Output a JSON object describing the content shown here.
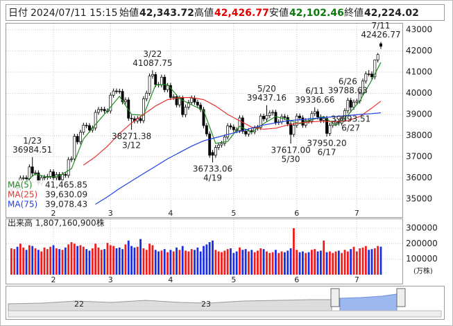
{
  "header": {
    "date_label": "日付",
    "datetime": "2024/07/11 15:15",
    "open_label": "始値",
    "open": "42,343.72",
    "high_label": "高値",
    "high": "42,426.77",
    "low_label": "安値",
    "low": "42,102.46",
    "close_label": "終値",
    "close": "42,224.02"
  },
  "chart_data": {
    "type": "candlestick",
    "grid": true,
    "up_color": "#ffffff",
    "down_color": "#000000",
    "ylim": [
      34570,
      43330
    ],
    "yticks": [
      35000,
      36000,
      37000,
      38000,
      39000,
      40000,
      41000,
      42000,
      43000
    ],
    "xticks": [
      {
        "value": 14,
        "label": "2"
      },
      {
        "value": 33,
        "label": "3"
      },
      {
        "value": 53,
        "label": "4"
      },
      {
        "value": 74,
        "label": "5"
      },
      {
        "value": 95,
        "label": "6"
      },
      {
        "value": 115,
        "label": "7"
      }
    ],
    "candles": [
      [
        35450,
        35700,
        35330,
        35580
      ],
      [
        35580,
        35740,
        35460,
        35620
      ],
      [
        35620,
        35740,
        35360,
        35480
      ],
      [
        35480,
        36110,
        35360,
        35990
      ],
      [
        35990,
        36120,
        35880,
        36000
      ],
      [
        36000,
        36120,
        35840,
        35960
      ],
      [
        35960,
        36640,
        35840,
        36520
      ],
      [
        36520,
        36984.51,
        36100,
        36226
      ],
      [
        36226,
        36356,
        36116,
        36236
      ],
      [
        36236,
        36356,
        35630,
        35750
      ],
      [
        35750,
        36130,
        35630,
        36010
      ],
      [
        36010,
        36146,
        35890,
        36026
      ],
      [
        36026,
        36186,
        35906,
        36066
      ],
      [
        36066,
        36407,
        35946,
        36287
      ],
      [
        36287,
        36407,
        35891,
        36011
      ],
      [
        36011,
        36278,
        35891,
        36158
      ],
      [
        36158,
        36278,
        35790,
        35910
      ],
      [
        35910,
        36280,
        35790,
        36160
      ],
      [
        36160,
        36280,
        35999,
        36119
      ],
      [
        36119,
        36984,
        35999,
        36864
      ],
      [
        36864,
        37017,
        36744,
        36897
      ],
      [
        36897,
        38084,
        36777,
        37964
      ],
      [
        37964,
        38084,
        37583,
        37703
      ],
      [
        37703,
        38277,
        37583,
        38157
      ],
      [
        38157,
        38608,
        38037,
        38488
      ],
      [
        38488,
        38608,
        38350,
        38470
      ],
      [
        38470,
        38590,
        38142,
        38262
      ],
      [
        38262,
        38483,
        38142,
        38363
      ],
      [
        38363,
        39218,
        38243,
        39098
      ],
      [
        39098,
        39353,
        38978,
        39233
      ],
      [
        39233,
        39360,
        39113,
        39240
      ],
      [
        39240,
        39360,
        39046,
        39166
      ],
      [
        39166,
        39286,
        39046,
        39166
      ],
      [
        39166,
        40030,
        39046,
        39910
      ],
      [
        39910,
        40229,
        39790,
        40109
      ],
      [
        40109,
        40229,
        39977,
        40097
      ],
      [
        40097,
        40217,
        39970,
        40090
      ],
      [
        40090,
        40210,
        39478,
        39598
      ],
      [
        39598,
        39808,
        39478,
        39688
      ],
      [
        39688,
        39808,
        38700,
        38820
      ],
      [
        38820,
        39000,
        38271.38,
        38797
      ],
      [
        38797,
        38917,
        38575,
        38695
      ],
      [
        38695,
        38927,
        38575,
        38807
      ],
      [
        38807,
        38927,
        38587,
        38707
      ],
      [
        38707,
        39860,
        38587,
        39740
      ],
      [
        39740,
        40123,
        39620,
        40003
      ],
      [
        40003,
        40935,
        39883,
        40815
      ],
      [
        40815,
        41087.75,
        40695,
        40888
      ],
      [
        40888,
        41008,
        40294,
        40414
      ],
      [
        40414,
        40534,
        40278,
        40398
      ],
      [
        40398,
        40882,
        40278,
        40762
      ],
      [
        40762,
        40882,
        40048,
        40168
      ],
      [
        40168,
        40489,
        40048,
        40369
      ],
      [
        40369,
        40489,
        39683,
        39803
      ],
      [
        39803,
        39958,
        39683,
        39838
      ],
      [
        39838,
        39958,
        39331,
        39451
      ],
      [
        39451,
        39893,
        39331,
        39773
      ],
      [
        39773,
        39893,
        38872,
        38992
      ],
      [
        38992,
        39467,
        38872,
        39347
      ],
      [
        39347,
        39686,
        39227,
        39566
      ],
      [
        39566,
        39893,
        39446,
        39773
      ],
      [
        39773,
        39893,
        39461,
        39581
      ],
      [
        39581,
        39701,
        39322,
        39442
      ],
      [
        39442,
        39562,
        39112,
        39232
      ],
      [
        39232,
        39352,
        38351,
        38471
      ],
      [
        38471,
        38591,
        37959,
        38079
      ],
      [
        38079,
        38199,
        36948,
        37068
      ],
      [
        37200,
        37320,
        36733.06,
        37068
      ],
      [
        37068,
        37558,
        36948,
        37438
      ],
      [
        37438,
        37672,
        37318,
        37552
      ],
      [
        37552,
        37748,
        37432,
        37628
      ],
      [
        37628,
        38054,
        37508,
        37934
      ],
      [
        37934,
        38580,
        37814,
        38460
      ],
      [
        38460,
        38580,
        38285,
        38405
      ],
      [
        38405,
        38525,
        38154,
        38274
      ],
      [
        38274,
        38394,
        38116,
        38236
      ],
      [
        38236,
        38955,
        38116,
        38835
      ],
      [
        38835,
        38955,
        38082,
        38202
      ],
      [
        38202,
        38322,
        37953,
        38073
      ],
      [
        38073,
        38349,
        37953,
        38229
      ],
      [
        38229,
        38349,
        38059,
        38179
      ],
      [
        38179,
        38476,
        38059,
        38356
      ],
      [
        38356,
        38505,
        38236,
        38385
      ],
      [
        38385,
        39040,
        38265,
        38920
      ],
      [
        38920,
        39040,
        38667,
        38787
      ],
      [
        38787,
        39437.16,
        38667,
        38946
      ],
      [
        38946,
        39189,
        38826,
        39069
      ],
      [
        39069,
        39223,
        38949,
        39103
      ],
      [
        39103,
        39223,
        38497,
        38617
      ],
      [
        38617,
        38766,
        38497,
        38646
      ],
      [
        38646,
        39020,
        38526,
        38900
      ],
      [
        38900,
        39020,
        38735,
        38855
      ],
      [
        38855,
        38975,
        38436,
        38556
      ],
      [
        38556,
        38676,
        37617,
        38054
      ],
      [
        38054,
        38607,
        37934,
        38487
      ],
      [
        38487,
        39043,
        38367,
        38923
      ],
      [
        38923,
        39043,
        38717,
        38837
      ],
      [
        38837,
        38957,
        38370,
        38490
      ],
      [
        38490,
        38823,
        38370,
        38703
      ],
      [
        38703,
        38823,
        38563,
        38683
      ],
      [
        38683,
        39158,
        38563,
        39038
      ],
      [
        39038,
        39336.66,
        38918,
        39134
      ],
      [
        39134,
        39254,
        38756,
        38876
      ],
      [
        38876,
        38996,
        38600,
        38720
      ],
      [
        38720,
        38934,
        38600,
        38814
      ],
      [
        38814,
        38934,
        37950.2,
        38102
      ],
      [
        38102,
        38602,
        37982,
        38482
      ],
      [
        38482,
        38690,
        38362,
        38570
      ],
      [
        38570,
        38753,
        38450,
        38633
      ],
      [
        38633,
        38753,
        38476,
        38596
      ],
      [
        38596,
        38924,
        38476,
        38804
      ],
      [
        38804,
        39293,
        38684,
        39173
      ],
      [
        39173,
        39788.63,
        39053,
        39667
      ],
      [
        39667,
        39787,
        39093.51,
        39341
      ],
      [
        39341,
        39703,
        39221,
        39583
      ],
      [
        39583,
        39751,
        39463,
        39631
      ],
      [
        39631,
        40106,
        39511,
        39986
      ],
      [
        39986,
        40700,
        39866,
        40580
      ],
      [
        40580,
        41033,
        40460,
        40913
      ],
      [
        40913,
        41100,
        40792,
        40912
      ],
      [
        40912,
        41032,
        40660,
        40780
      ],
      [
        40780,
        41600,
        40660,
        41580
      ],
      [
        41580,
        41900,
        41460,
        41831
      ],
      [
        42343.72,
        42426.77,
        42102.46,
        42224.02
      ]
    ],
    "series": [
      {
        "name": "MA(5)",
        "color": "#1f8a1f",
        "legend_value": {
          "value": 41465.85,
          "label": "41,465.85"
        },
        "x": [
          4,
          8,
          12,
          16,
          20,
          24,
          28,
          32,
          36,
          40,
          44,
          48,
          52,
          56,
          60,
          64,
          68,
          72,
          76,
          80,
          84,
          88,
          92,
          96,
          100,
          104,
          108,
          112,
          116,
          120,
          123
        ],
        "values": [
          35730,
          36190,
          36020,
          36100,
          36430,
          37840,
          38520,
          39180,
          39860,
          39000,
          38960,
          40390,
          40420,
          39740,
          39460,
          39190,
          37630,
          37720,
          38440,
          38150,
          38570,
          38900,
          38750,
          38560,
          38750,
          38900,
          38470,
          38970,
          39640,
          40630,
          41465.85
        ]
      },
      {
        "name": "MA(25)",
        "color": "#e8322e",
        "legend_value": {
          "value": 39630.09,
          "label": "39,630.09"
        },
        "x": [
          24,
          28,
          32,
          36,
          40,
          44,
          48,
          52,
          56,
          60,
          64,
          68,
          72,
          76,
          80,
          84,
          88,
          92,
          96,
          100,
          104,
          108,
          112,
          116,
          120,
          123
        ],
        "values": [
          36600,
          37000,
          37500,
          38100,
          38600,
          39000,
          39400,
          39700,
          39800,
          39800,
          39700,
          39400,
          39000,
          38700,
          38400,
          38300,
          38350,
          38500,
          38600,
          38650,
          38680,
          38650,
          38700,
          38900,
          39300,
          39630.09
        ]
      },
      {
        "name": "MA(75)",
        "color": "#2040e0",
        "legend_value": {
          "value": 39078.43,
          "label": "39,078.43"
        },
        "x": [
          28,
          32,
          36,
          40,
          44,
          48,
          52,
          56,
          60,
          64,
          68,
          72,
          76,
          80,
          84,
          88,
          92,
          96,
          100,
          104,
          108,
          112,
          116,
          120,
          123
        ],
        "values": [
          34750,
          35100,
          35500,
          35850,
          36200,
          36550,
          36900,
          37200,
          37500,
          37750,
          37900,
          38050,
          38200,
          38350,
          38500,
          38600,
          38700,
          38750,
          38800,
          38850,
          38900,
          38950,
          39000,
          39040,
          39078.43
        ]
      }
    ],
    "annotations": [
      {
        "x": 7,
        "date": "1/23",
        "value": 36984.51,
        "position": "above"
      },
      {
        "x": 40,
        "date": "3/12",
        "value": 38271.38,
        "position": "below"
      },
      {
        "x": 47,
        "date": "3/22",
        "value": 41087.75,
        "position": "above"
      },
      {
        "x": 67,
        "date": "4/19",
        "value": 36733.06,
        "position": "below"
      },
      {
        "x": 85,
        "date": "5/20",
        "value": 39437.16,
        "position": "above"
      },
      {
        "x": 93,
        "date": "5/30",
        "value": {
          "value": 37617,
          "label": "37617.00"
        },
        "position": "below"
      },
      {
        "x": 101,
        "date": "6/11",
        "value": 39336.66,
        "position": "above"
      },
      {
        "x": 105,
        "date": "6/17",
        "value": {
          "value": 37950.2,
          "label": "37950.20"
        },
        "position": "below"
      },
      {
        "x": 112,
        "date": "6/26",
        "value": 39788.63,
        "position": "above"
      },
      {
        "x": 113,
        "date": "6/27",
        "value": 39093.51,
        "position": "below"
      },
      {
        "x": 123,
        "date": "7/11",
        "value": 42426.77,
        "position": "above"
      }
    ],
    "volume": {
      "title": "出来高  1,807,160,900株",
      "unit": "(万株)",
      "up_color": "#ee1c1c",
      "down_color": "#1c2ce0",
      "ylim": [
        0,
        349000
      ],
      "yticks": [
        100000,
        200000,
        300000
      ],
      "values": [
        170000,
        165000,
        180000,
        200000,
        175000,
        160000,
        190000,
        185000,
        170000,
        160000,
        150000,
        175000,
        165000,
        180000,
        190000,
        170000,
        165000,
        160000,
        175000,
        195000,
        210000,
        200000,
        185000,
        190000,
        180000,
        165000,
        155000,
        170000,
        200000,
        175000,
        160000,
        165000,
        205000,
        190000,
        185000,
        170000,
        175000,
        165000,
        195000,
        220000,
        185000,
        175000,
        180000,
        230000,
        170000,
        160000,
        200000,
        190000,
        160000,
        150000,
        155000,
        165000,
        145000,
        160000,
        150000,
        175000,
        160000,
        185000,
        155000,
        150000,
        165000,
        160000,
        175000,
        150000,
        185000,
        195000,
        210000,
        220000,
        160000,
        150000,
        145000,
        155000,
        165000,
        170000,
        140000,
        150000,
        175000,
        160000,
        165000,
        150000,
        160000,
        145000,
        155000,
        170000,
        165000,
        150000,
        140000,
        145000,
        160000,
        140000,
        150000,
        145000,
        155000,
        170000,
        300000,
        160000,
        145000,
        150000,
        140000,
        145000,
        160000,
        165000,
        150000,
        155000,
        220000,
        145000,
        150000,
        140000,
        150000,
        155000,
        140000,
        160000,
        150000,
        165000,
        180000,
        150000,
        170000,
        175000,
        185000,
        160000,
        165000,
        170000,
        185000,
        180716
      ]
    }
  },
  "navigator": {
    "labels": [
      "22",
      "23"
    ]
  }
}
